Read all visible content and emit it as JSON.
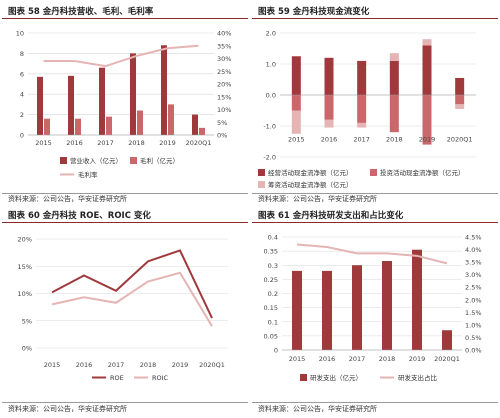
{
  "source": "资料来源：公司公告，华安证券研究所",
  "colors": {
    "dark": "#a0393b",
    "mid": "#c9676a",
    "light": "#e5b4b4",
    "header_line": "#8b2a2a",
    "grid": "#d9d9d9"
  },
  "chart_data": [
    {
      "type": "bar",
      "title": "图表 58 金丹科技营收、毛利、毛利率",
      "categories": [
        "2015",
        "2016",
        "2017",
        "2018",
        "2019",
        "2020Q1"
      ],
      "ylim": [
        0,
        10
      ],
      "y2lim": [
        0,
        0.4
      ],
      "yticks": [
        "0",
        "2",
        "4",
        "6",
        "8",
        "10"
      ],
      "y2ticks": [
        "0%",
        "5%",
        "10%",
        "15%",
        "20%",
        "25%",
        "30%",
        "35%",
        "40%"
      ],
      "series": [
        {
          "name": "营业收入（亿元）",
          "type": "bar",
          "color": "#a0393b",
          "values": [
            5.7,
            5.8,
            6.6,
            8.0,
            8.8,
            2.0
          ]
        },
        {
          "name": "毛利（亿元）",
          "type": "bar",
          "color": "#c9676a",
          "values": [
            1.6,
            1.6,
            1.8,
            2.4,
            3.0,
            0.7
          ]
        },
        {
          "name": "毛利率",
          "type": "line",
          "axis": "right",
          "color": "#e5b4b4",
          "values": [
            0.29,
            0.29,
            0.27,
            0.31,
            0.34,
            0.35
          ]
        }
      ]
    },
    {
      "type": "bar",
      "title": "图表 59 金丹科技现金流变化",
      "categories": [
        "2015",
        "2016",
        "2017",
        "2018",
        "2019",
        "2020Q1"
      ],
      "ylim": [
        -2.0,
        2.0
      ],
      "yticks": [
        "2.0",
        "1.0",
        "0.0",
        "-1.0",
        "-2.0"
      ],
      "series": [
        {
          "name": "经营活动现金流净额（亿元）",
          "color": "#a0393b",
          "values": [
            1.25,
            1.2,
            1.1,
            1.1,
            1.6,
            0.55
          ]
        },
        {
          "name": "投资活动现金流净额（亿元）",
          "color": "#c9676a",
          "values": [
            -0.5,
            -0.8,
            -0.9,
            -1.2,
            -1.6,
            -0.3
          ]
        },
        {
          "name": "筹资活动现金流净额（亿元）",
          "color": "#e5b4b4",
          "values": [
            -0.75,
            -0.25,
            -0.15,
            0.25,
            0.2,
            -0.15
          ]
        }
      ]
    },
    {
      "type": "line",
      "title": "图表 60 金丹科技 ROE、ROIC 变化",
      "categories": [
        "2015",
        "2016",
        "2017",
        "2018",
        "2019",
        "2020Q1"
      ],
      "ylim": [
        0,
        0.2
      ],
      "yticks": [
        "0%",
        "5%",
        "10%",
        "15%",
        "20%"
      ],
      "series": [
        {
          "name": "ROE",
          "color": "#a0393b",
          "values": [
            0.102,
            0.133,
            0.105,
            0.159,
            0.179,
            0.055
          ]
        },
        {
          "name": "ROIC",
          "color": "#e5b4b4",
          "values": [
            0.08,
            0.093,
            0.083,
            0.122,
            0.138,
            0.04
          ]
        }
      ]
    },
    {
      "type": "bar",
      "title": "图表 61 金丹科技研发支出和占比变化",
      "categories": [
        "2015",
        "2016",
        "2017",
        "2018",
        "2019",
        "2020Q1"
      ],
      "ylim": [
        0,
        0.4
      ],
      "y2lim": [
        0,
        0.045
      ],
      "yticks": [
        "0",
        "0.05",
        "0.1",
        "0.15",
        "0.2",
        "0.25",
        "0.3",
        "0.35",
        "0.4"
      ],
      "y2ticks": [
        "0.0%",
        "0.5%",
        "1.0%",
        "1.5%",
        "2.0%",
        "2.5%",
        "3.0%",
        "3.5%",
        "4.0%",
        "4.5%"
      ],
      "series": [
        {
          "name": "研发支出（亿元）",
          "type": "bar",
          "color": "#a0393b",
          "values": [
            0.28,
            0.28,
            0.3,
            0.315,
            0.355,
            0.07
          ]
        },
        {
          "name": "研发支出占比",
          "type": "line",
          "axis": "right",
          "color": "#e5b4b4",
          "values": [
            0.042,
            0.041,
            0.0385,
            0.0385,
            0.0375,
            0.0345
          ]
        }
      ]
    }
  ]
}
